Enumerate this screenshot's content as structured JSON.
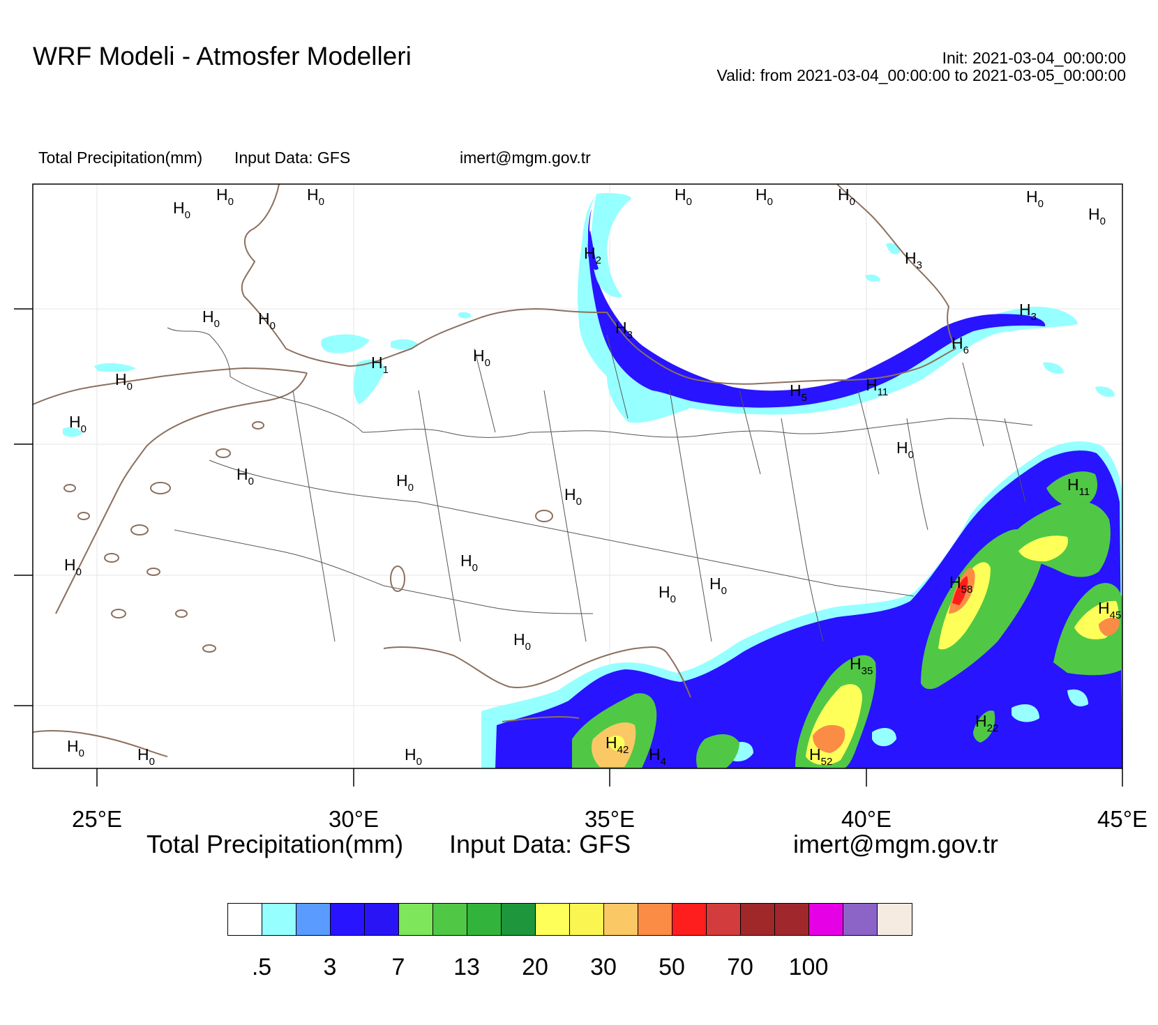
{
  "header": {
    "title": "WRF Modeli - Atmosfer Modelleri",
    "init": "Init: 2021-03-04_00:00:00",
    "valid": "Valid: from 2021-03-04_00:00:00 to 2021-03-05_00:00:00"
  },
  "subheader": {
    "variable": "Total Precipitation(mm)",
    "input": "Input Data: GFS",
    "contact": "imert@mgm.gov.tr"
  },
  "map": {
    "x_ticks": [
      "25°E",
      "30°E",
      "35°E",
      "40°E",
      "45°E"
    ],
    "extent_lon": [
      23.75,
      45.0
    ],
    "coast_color": "#8B6F5E",
    "border_color": "#555555",
    "high_labels": [
      {
        "letter": "H",
        "value": "0"
      },
      {
        "letter": "H",
        "value": "0"
      },
      {
        "letter": "H",
        "value": "0"
      },
      {
        "letter": "H",
        "value": "0"
      },
      {
        "letter": "H",
        "value": "0"
      },
      {
        "letter": "H",
        "value": "0"
      },
      {
        "letter": "H",
        "value": "0"
      },
      {
        "letter": "H",
        "value": "0"
      },
      {
        "letter": "H",
        "value": "0"
      },
      {
        "letter": "H",
        "value": "0"
      },
      {
        "letter": "H",
        "value": "0"
      },
      {
        "letter": "H",
        "value": "0"
      },
      {
        "letter": "H",
        "value": "0"
      },
      {
        "letter": "H",
        "value": "0"
      },
      {
        "letter": "H",
        "value": "0"
      },
      {
        "letter": "H",
        "value": "0"
      },
      {
        "letter": "H",
        "value": "0"
      },
      {
        "letter": "H",
        "value": "0"
      },
      {
        "letter": "H",
        "value": "0"
      },
      {
        "letter": "H",
        "value": "0"
      },
      {
        "letter": "H",
        "value": "0"
      },
      {
        "letter": "H",
        "value": "0"
      },
      {
        "letter": "H",
        "value": "0"
      },
      {
        "letter": "H",
        "value": "0"
      },
      {
        "letter": "H",
        "value": "0"
      },
      {
        "letter": "H",
        "value": "0"
      },
      {
        "letter": "H",
        "value": "0"
      },
      {
        "letter": "H",
        "value": "1"
      },
      {
        "letter": "H",
        "value": "2"
      },
      {
        "letter": "H",
        "value": "3"
      },
      {
        "letter": "H",
        "value": "3"
      },
      {
        "letter": "H",
        "value": "3"
      },
      {
        "letter": "H",
        "value": "5"
      },
      {
        "letter": "H",
        "value": "6"
      },
      {
        "letter": "H",
        "value": "11"
      },
      {
        "letter": "H",
        "value": "11"
      },
      {
        "letter": "H",
        "value": "58"
      },
      {
        "letter": "H",
        "value": "45"
      },
      {
        "letter": "H",
        "value": "35"
      },
      {
        "letter": "H",
        "value": "22"
      },
      {
        "letter": "H",
        "value": "42"
      },
      {
        "letter": "H",
        "value": "4"
      },
      {
        "letter": "H",
        "value": "52"
      }
    ]
  },
  "colorbar": {
    "title": "Total Precipitation(mm)",
    "input": "Input Data: GFS",
    "contact": "imert@mgm.gov.tr",
    "colors": [
      "#FFFFFF",
      "#96FFFF",
      "#5A9BFF",
      "#2814FF",
      "#2814F5",
      "#7DE65A",
      "#50C846",
      "#32B43C",
      "#1E963C",
      "#FFFF5A",
      "#FAF550",
      "#FAC864",
      "#FA8C46",
      "#FF1E1E",
      "#D23C3C",
      "#A02828",
      "#A0282D",
      "#E600E6",
      "#8C64C8",
      "#F5EBE1"
    ],
    "labels": [
      ".5",
      "3",
      "7",
      "13",
      "20",
      "30",
      "50",
      "70",
      "100"
    ]
  }
}
